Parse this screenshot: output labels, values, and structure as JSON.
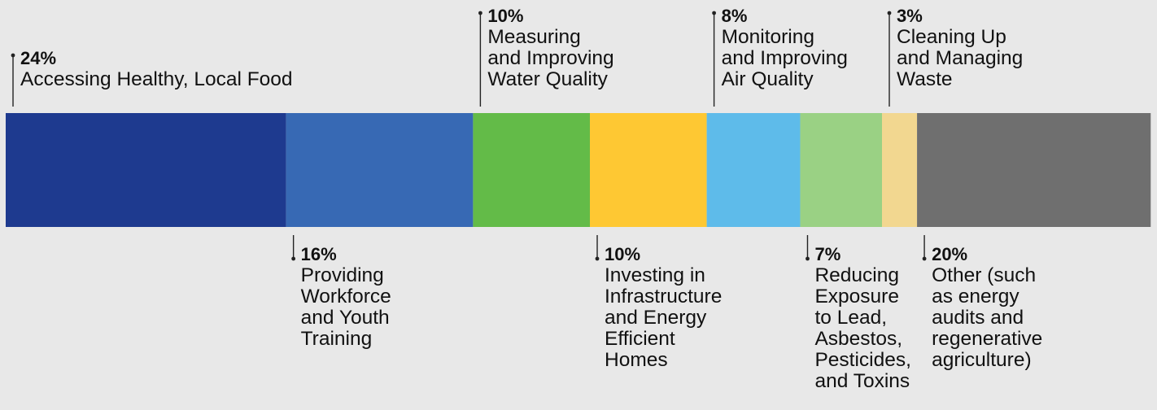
{
  "chart_data": {
    "type": "bar",
    "orientation": "horizontal",
    "stacked": true,
    "unit": "%",
    "series": [
      {
        "value": 24,
        "pct_label": "24%",
        "label": "Accessing Healthy, Local Food",
        "color": "#1e3a8f",
        "side": "top"
      },
      {
        "value": 16,
        "pct_label": "16%",
        "label": "Providing\nWorkforce\nand Youth\nTraining",
        "color": "#3769b4",
        "side": "bottom"
      },
      {
        "value": 10,
        "pct_label": "10%",
        "label": "Measuring\nand Improving\nWater Quality",
        "color": "#63bb48",
        "side": "top"
      },
      {
        "value": 10,
        "pct_label": "10%",
        "label": "Investing in\nInfrastructure\nand Energy\nEfficient\nHomes",
        "color": "#fec833",
        "side": "bottom"
      },
      {
        "value": 8,
        "pct_label": "8%",
        "label": "Monitoring\nand Improving\nAir Quality",
        "color": "#5ebbea",
        "side": "top"
      },
      {
        "value": 7,
        "pct_label": "7%",
        "label": "Reducing\nExposure\nto Lead,\nAsbestos,\nPesticides,\nand Toxins",
        "color": "#9ad184",
        "side": "bottom"
      },
      {
        "value": 3,
        "pct_label": "3%",
        "label": "Cleaning Up\nand Managing\nWaste",
        "color": "#f2d790",
        "side": "top"
      },
      {
        "value": 20,
        "pct_label": "20%",
        "label": "Other (such\nas energy\naudits and\nregenerative\nagriculture)",
        "color": "#6f6f6f",
        "side": "bottom"
      }
    ]
  }
}
